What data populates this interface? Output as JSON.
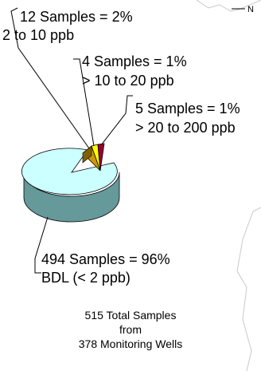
{
  "map_fragment_label": "N",
  "chart_data": {
    "type": "pie",
    "slices": [
      {
        "label": "BDL (< 2 ppb)",
        "samples": 494,
        "percent": 96,
        "count_text": "494 Samples = 96%",
        "color": "#ccffff"
      },
      {
        "label": "2 to 10 ppb",
        "samples": 12,
        "percent": 2,
        "count_text": "12 Samples = 2%",
        "color": "#cc9900"
      },
      {
        "label": "> 10 to 20 ppb",
        "samples": 4,
        "percent": 1,
        "count_text": "4 Samples = 1%",
        "color": "#ffff00"
      },
      {
        "label": "> 20 to 200 ppb",
        "samples": 5,
        "percent": 1,
        "count_text": "5 Samples = 1%",
        "color": "#990033"
      }
    ],
    "total": {
      "line1": "515 Total Samples",
      "line2": "from",
      "line3": "378 Monitoring Wells"
    }
  }
}
